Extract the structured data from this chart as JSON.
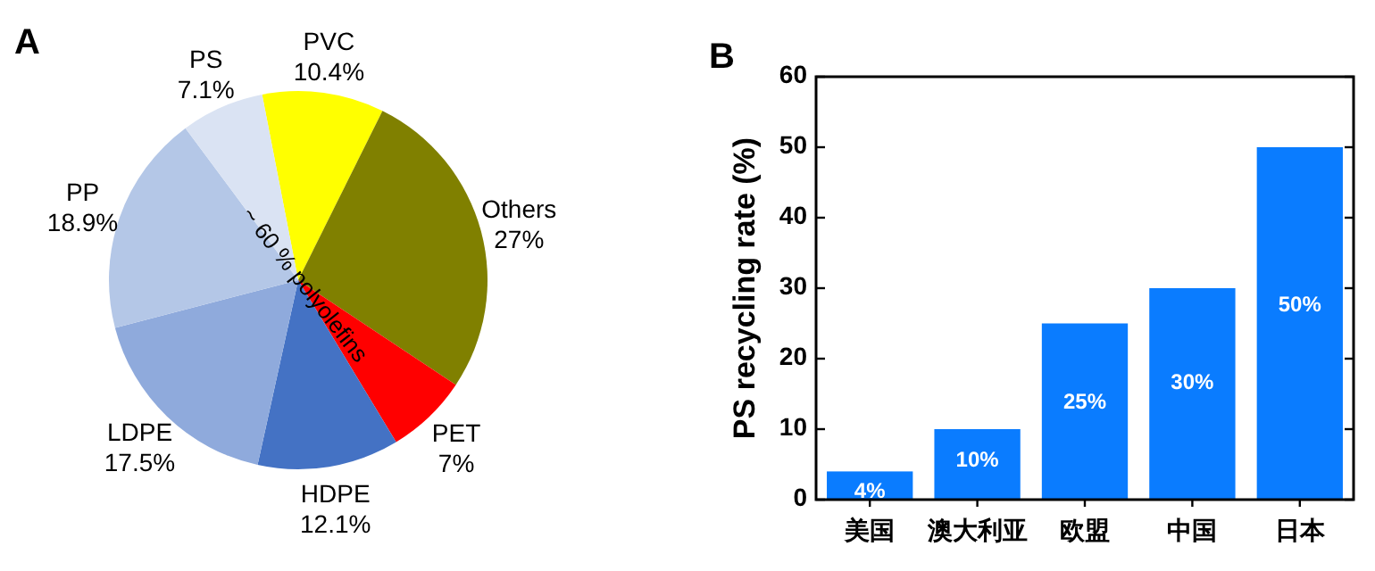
{
  "chart_data": [
    {
      "type": "pie",
      "title": "A",
      "categories": [
        "PVC",
        "Others",
        "PET",
        "HDPE",
        "LDPE",
        "PP",
        "PS"
      ],
      "values": [
        10.4,
        27,
        7,
        12.1,
        17.5,
        18.9,
        7.1
      ],
      "value_labels": [
        "10.4%",
        "27%",
        "7%",
        "12.1%",
        "17.5%",
        "18.9%",
        "7.1%"
      ],
      "colors": [
        "#ffff00",
        "#808000",
        "#ff0000",
        "#4472c4",
        "#8faadc",
        "#b4c7e7",
        "#dae3f3"
      ],
      "annotations": [
        "~ 60 % polyolefins"
      ]
    },
    {
      "type": "bar",
      "title": "B",
      "ylabel": "PS recycling rate (%)",
      "categories": [
        "美国",
        "澳大利亚",
        "欧盟",
        "中国",
        "日本"
      ],
      "values": [
        4,
        10,
        25,
        30,
        50
      ],
      "value_labels": [
        "4%",
        "10%",
        "25%",
        "30%",
        "50%"
      ],
      "color": "#0a7cff",
      "ylim": [
        0,
        60
      ],
      "yticks": [
        0,
        10,
        20,
        30,
        40,
        50,
        60
      ],
      "grid": false
    }
  ]
}
